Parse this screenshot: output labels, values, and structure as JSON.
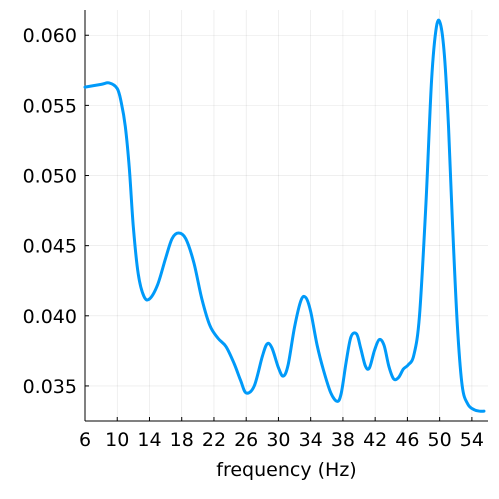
{
  "chart_data": {
    "type": "line",
    "title": "",
    "xlabel": "frequency (Hz)",
    "ylabel": "",
    "xlim": [
      6,
      56
    ],
    "ylim": [
      0.0325,
      0.0618
    ],
    "xticks": [
      6,
      10,
      14,
      18,
      22,
      26,
      30,
      34,
      38,
      42,
      46,
      50,
      54
    ],
    "xtick_labels": [
      "6",
      "10",
      "14",
      "18",
      "22",
      "26",
      "30",
      "34",
      "38",
      "42",
      "46",
      "50",
      "54"
    ],
    "yticks": [
      0.035,
      0.04,
      0.045,
      0.05,
      0.055,
      0.06
    ],
    "ytick_labels": [
      "0.035",
      "0.040",
      "0.045",
      "0.050",
      "0.055",
      "0.060"
    ],
    "grid": true,
    "legend": "none",
    "series": [
      {
        "color": "#009af9",
        "x": [
          6,
          8,
          9,
          10,
          10.5,
          11,
          11.5,
          12,
          12.6,
          13.3,
          14,
          15,
          16,
          16.8,
          17.6,
          18.5,
          19.5,
          20.5,
          21.5,
          22.5,
          23.5,
          24.5,
          25.3,
          26,
          27,
          28,
          28.6,
          29.2,
          30,
          30.6,
          31.2,
          32,
          32.8,
          33.4,
          34,
          34.8,
          35.6,
          36.5,
          37.3,
          37.8,
          38.4,
          39,
          39.7,
          40.2,
          40.8,
          41.3,
          41.9,
          42.5,
          43.1,
          43.7,
          44.3,
          44.9,
          45.5,
          46.1,
          46.8,
          47.5,
          48.3,
          49,
          49.6,
          50.1,
          50.6,
          51.1,
          51.6,
          52.2,
          52.8,
          53.5,
          54.3,
          55,
          55.5
        ],
        "y": [
          0.0563,
          0.0565,
          0.0566,
          0.0562,
          0.0552,
          0.0535,
          0.0505,
          0.0463,
          0.043,
          0.0414,
          0.0412,
          0.0422,
          0.0441,
          0.0455,
          0.0459,
          0.0455,
          0.0438,
          0.0412,
          0.0393,
          0.0384,
          0.0378,
          0.0366,
          0.0354,
          0.0345,
          0.035,
          0.0371,
          0.038,
          0.0377,
          0.0363,
          0.0357,
          0.0365,
          0.0392,
          0.0411,
          0.0413,
          0.0403,
          0.0379,
          0.0361,
          0.0345,
          0.0339,
          0.0345,
          0.0367,
          0.0385,
          0.0387,
          0.0377,
          0.0364,
          0.0363,
          0.0375,
          0.0383,
          0.0379,
          0.0364,
          0.0355,
          0.0356,
          0.0362,
          0.0365,
          0.0372,
          0.04,
          0.048,
          0.0568,
          0.0606,
          0.0608,
          0.0585,
          0.0535,
          0.0465,
          0.0393,
          0.035,
          0.0337,
          0.0333,
          0.0332,
          0.0332
        ]
      }
    ]
  }
}
